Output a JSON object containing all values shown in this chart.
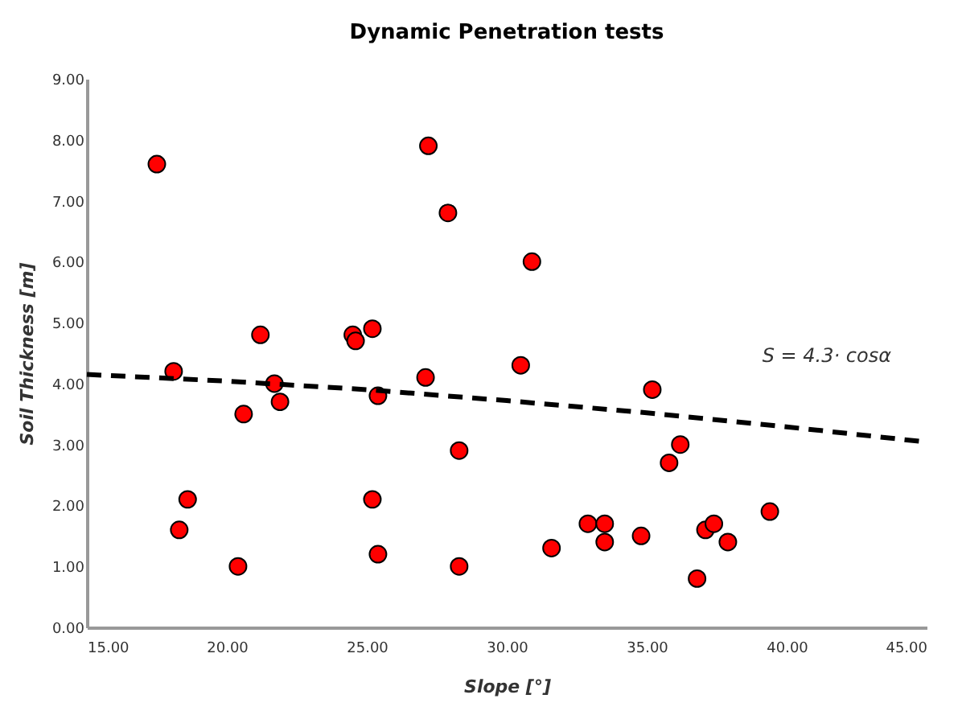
{
  "chart_data": {
    "type": "scatter",
    "title": "Dynamic Penetration tests",
    "xlabel": "Slope [°]",
    "ylabel": "Soil Thickness [m]",
    "xlim": [
      15,
      45
    ],
    "ylim": [
      0,
      9
    ],
    "xticks": [
      {
        "value": 15,
        "label": "15.00"
      },
      {
        "value": 20,
        "label": "20.00"
      },
      {
        "value": 25,
        "label": "25.00"
      },
      {
        "value": 30,
        "label": "30.00"
      },
      {
        "value": 35,
        "label": "35.00"
      },
      {
        "value": 40,
        "label": "40.00"
      },
      {
        "value": 45,
        "label": "45.00"
      }
    ],
    "yticks": [
      {
        "value": 0,
        "label": "0.00"
      },
      {
        "value": 1,
        "label": "1.00"
      },
      {
        "value": 2,
        "label": "2.00"
      },
      {
        "value": 3,
        "label": "3.00"
      },
      {
        "value": 4,
        "label": "4.00"
      },
      {
        "value": 5,
        "label": "5.00"
      },
      {
        "value": 6,
        "label": "6.00"
      },
      {
        "value": 7,
        "label": "7.00"
      },
      {
        "value": 8,
        "label": "8.00"
      },
      {
        "value": 9,
        "label": "9.00"
      }
    ],
    "grid": false,
    "series": [
      {
        "type": "scatter",
        "color": "#ff0000",
        "marker": "circle",
        "x": [
          17.5,
          18.1,
          18.3,
          18.6,
          20.4,
          20.6,
          21.2,
          21.7,
          21.9,
          24.5,
          24.6,
          25.2,
          25.2,
          25.4,
          25.4,
          27.1,
          27.2,
          27.9,
          28.3,
          28.3,
          30.5,
          30.9,
          31.6,
          32.9,
          33.5,
          33.5,
          34.8,
          35.2,
          35.8,
          36.2,
          36.8,
          37.1,
          37.4,
          37.9,
          39.4
        ],
        "values": [
          7.6,
          4.2,
          1.6,
          2.1,
          1.0,
          3.5,
          4.8,
          4.0,
          3.7,
          4.8,
          4.7,
          4.9,
          2.1,
          3.8,
          1.2,
          4.1,
          7.9,
          6.8,
          2.9,
          1.0,
          4.3,
          6.0,
          1.3,
          1.7,
          1.7,
          1.4,
          1.5,
          3.9,
          2.7,
          3.0,
          0.8,
          1.6,
          1.7,
          1.4,
          1.9
        ]
      },
      {
        "type": "line",
        "color": "#000000",
        "line_style": "dashed",
        "marker": "none",
        "x": [
          15,
          20,
          25,
          30,
          35,
          40,
          45
        ],
        "values": [
          4.15,
          4.04,
          3.9,
          3.72,
          3.52,
          3.29,
          3.04
        ]
      }
    ],
    "annotations": [
      "S = 4.3· cosα"
    ]
  }
}
